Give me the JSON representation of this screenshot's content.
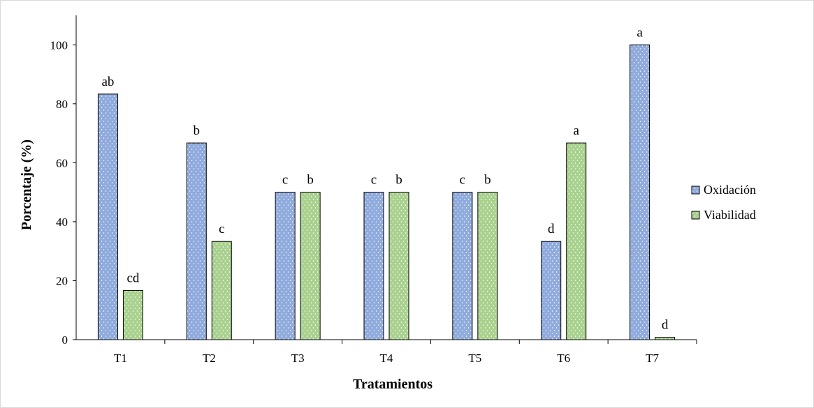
{
  "chart_data": {
    "type": "bar",
    "title": "",
    "xlabel": "Tratamientos",
    "ylabel": "Porcentaje (%)",
    "categories": [
      "T1",
      "T2",
      "T3",
      "T4",
      "T5",
      "T6",
      "T7"
    ],
    "ylim": [
      0,
      110
    ],
    "yticks": [
      0,
      20,
      40,
      60,
      80,
      100
    ],
    "grid": false,
    "legend_position": "right",
    "series": [
      {
        "name": "Oxidación",
        "color": "#8faadc",
        "values": [
          83.3,
          66.7,
          50,
          50,
          50,
          33.3,
          100
        ],
        "labels": [
          "ab",
          "b",
          "c",
          "c",
          "c",
          "d",
          "a"
        ]
      },
      {
        "name": "Viabilidad",
        "color": "#a9d18e",
        "values": [
          16.7,
          33.3,
          50,
          50,
          50,
          66.7,
          0.8
        ],
        "labels": [
          "cd",
          "c",
          "b",
          "b",
          "b",
          "a",
          "d"
        ]
      }
    ]
  }
}
